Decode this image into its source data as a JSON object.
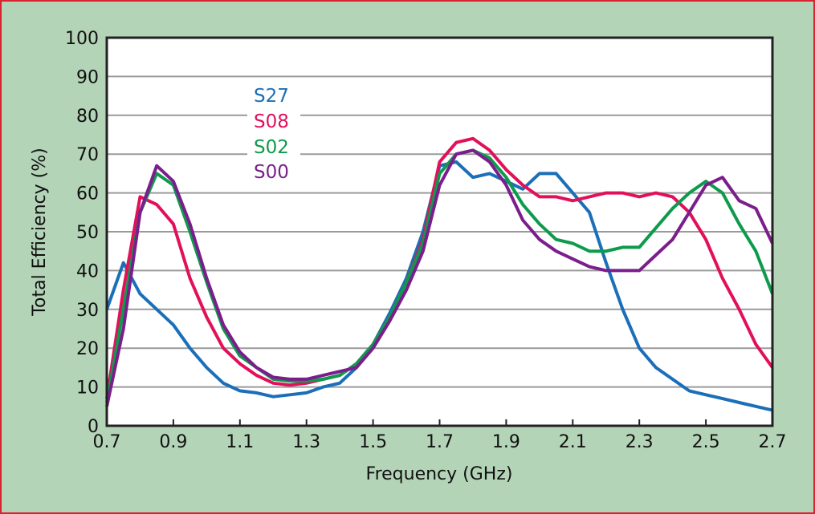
{
  "chart_data": {
    "type": "line",
    "title": "",
    "xlabel": "Frequency (GHz)",
    "ylabel": "Total Efficiency (%)",
    "xlim": [
      0.7,
      2.7
    ],
    "ylim": [
      0,
      100
    ],
    "grid": true,
    "legend_placement": "top-left",
    "xticks": [
      "0.7",
      "0.9",
      "1.1",
      "1.3",
      "1.5",
      "1.7",
      "1.9",
      "2.1",
      "2.3",
      "2.5",
      "2.7"
    ],
    "yticks": [
      "0",
      "10",
      "20",
      "30",
      "40",
      "50",
      "60",
      "70",
      "80",
      "90",
      "100"
    ],
    "x": [
      0.7,
      0.75,
      0.8,
      0.85,
      0.9,
      0.95,
      1.0,
      1.05,
      1.1,
      1.15,
      1.2,
      1.25,
      1.3,
      1.35,
      1.4,
      1.45,
      1.5,
      1.55,
      1.6,
      1.65,
      1.7,
      1.75,
      1.8,
      1.85,
      1.9,
      1.95,
      2.0,
      2.05,
      2.1,
      2.15,
      2.2,
      2.25,
      2.3,
      2.35,
      2.4,
      2.45,
      2.5,
      2.55,
      2.6,
      2.65,
      2.7
    ],
    "series": [
      {
        "name": "S27",
        "color": "#1b6fb9",
        "values": [
          30,
          42,
          34,
          30,
          26,
          20,
          15,
          11,
          9,
          8.5,
          7.5,
          8,
          8.5,
          10,
          11,
          15,
          21,
          29,
          38,
          50,
          67,
          68,
          64,
          65,
          63,
          61,
          65,
          65,
          60,
          55,
          42,
          30,
          20,
          15,
          12,
          9,
          8,
          7,
          6,
          5,
          4
        ]
      },
      {
        "name": "S08",
        "color": "#e2105a",
        "values": [
          7,
          35,
          59,
          57,
          52,
          38,
          28,
          20,
          16,
          13,
          11,
          10.5,
          11,
          12,
          13,
          16,
          21,
          28,
          37,
          48,
          68,
          73,
          74,
          71,
          66,
          62,
          59,
          59,
          58,
          59,
          60,
          60,
          59,
          60,
          59,
          55,
          48,
          38,
          30,
          21,
          15
        ]
      },
      {
        "name": "S02",
        "color": "#0e9a4c",
        "values": [
          6,
          30,
          55,
          65,
          62,
          50,
          37,
          25,
          18,
          15,
          12,
          11.5,
          11.5,
          12,
          13,
          16,
          21,
          28,
          37,
          47,
          65,
          70,
          71,
          69,
          64,
          57,
          52,
          48,
          47,
          45,
          45,
          46,
          46,
          51,
          56,
          60,
          63,
          60,
          52,
          45,
          34
        ]
      },
      {
        "name": "S00",
        "color": "#7b1e8c",
        "values": [
          5,
          25,
          55,
          67,
          63,
          52,
          38,
          26,
          19,
          15,
          12.5,
          12,
          12,
          13,
          14,
          15,
          20,
          27,
          35,
          45,
          62,
          70,
          71,
          68,
          62,
          53,
          48,
          45,
          43,
          41,
          40,
          40,
          40,
          44,
          48,
          55,
          62,
          64,
          58,
          56,
          47
        ]
      }
    ]
  }
}
